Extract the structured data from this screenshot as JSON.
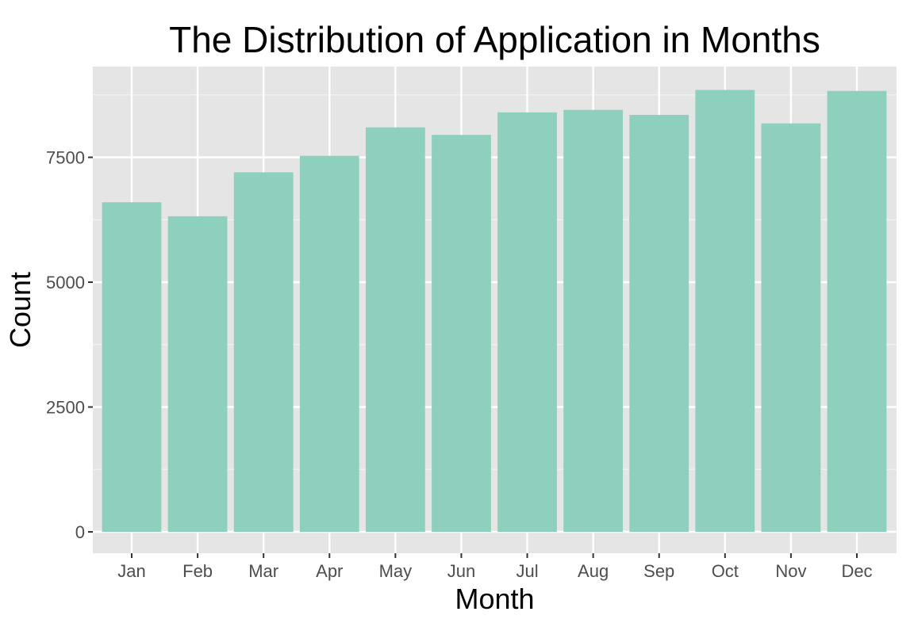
{
  "chart_data": {
    "type": "bar",
    "title": "The Distribution of Application in Months",
    "xlabel": "Month",
    "ylabel": "Count",
    "categories": [
      "Jan",
      "Feb",
      "Mar",
      "Apr",
      "May",
      "Jun",
      "Jul",
      "Aug",
      "Sep",
      "Oct",
      "Nov",
      "Dec"
    ],
    "values": [
      6600,
      6320,
      7200,
      7530,
      8100,
      7950,
      8400,
      8450,
      8350,
      8850,
      8180,
      8830
    ],
    "ylim": [
      0,
      9100
    ],
    "yticks": [
      0,
      2500,
      5000,
      7500
    ],
    "grid": true,
    "legend": "none",
    "colors": {
      "bar": "#8dd0bd",
      "panel_background": "#e5e5e5",
      "grid_major": "#ffffff",
      "grid_minor": "#f2f2f2",
      "tick_text": "#4d4d4d",
      "title_text": "#000000"
    }
  }
}
